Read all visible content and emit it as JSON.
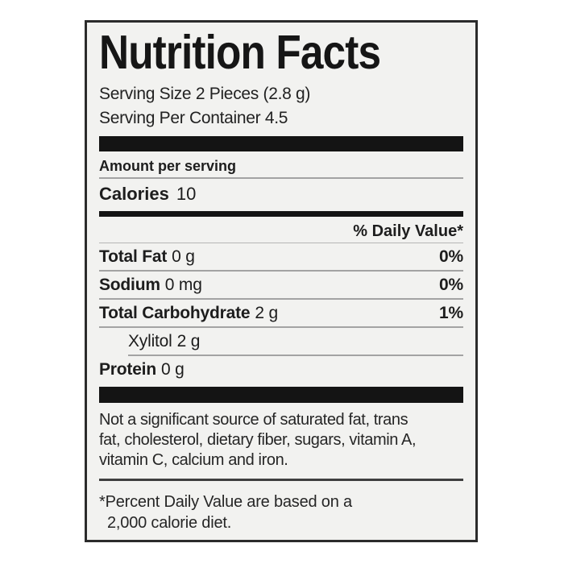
{
  "label": {
    "title": "Nutrition Facts",
    "serving_size": "Serving Size 2 Pieces (2.8 g)",
    "servings_per_container": "Serving Per Container 4.5",
    "amount_per_serving": "Amount per serving",
    "calories": {
      "label": "Calories",
      "value": "10"
    },
    "daily_value_header": "% Daily Value*",
    "rows": [
      {
        "name": "Total Fat",
        "amount": "0 g",
        "dv": "0%"
      },
      {
        "name": "Sodium",
        "amount": "0 mg",
        "dv": "0%"
      },
      {
        "name": "Total Carbohydrate",
        "amount": "2 g",
        "dv": "1%"
      },
      {
        "name": "Xylitol",
        "amount": "2 g",
        "dv": ""
      },
      {
        "name": "Protein",
        "amount": "0 g",
        "dv": ""
      }
    ],
    "disclaimer_lines": [
      "Not a significant source of saturated fat, trans",
      "fat, cholesterol, dietary fiber, sugars, vitamin A,",
      "vitamin C, calcium and iron."
    ],
    "footnote_lines": [
      "*Percent Daily Value are based on a",
      "2,000 calorie diet."
    ],
    "colors": {
      "page_background": "#ffffff",
      "label_background": "#f2f2f0",
      "border": "#2b2b2b",
      "bar": "#141414",
      "text": "#1d1d1d",
      "hairline": "#a3a3a3"
    }
  }
}
